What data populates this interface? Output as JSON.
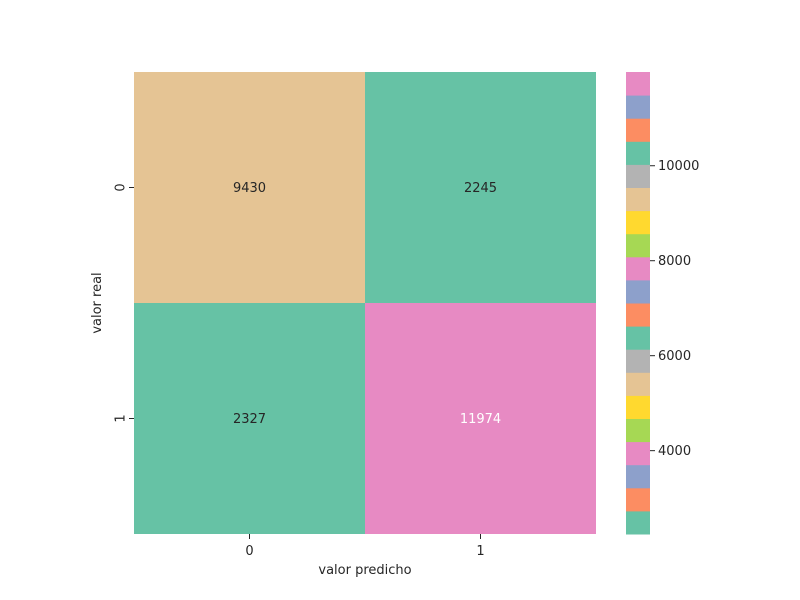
{
  "chart_data": {
    "type": "heatmap",
    "xlabel": "valor predicho",
    "ylabel": "valor real",
    "x_categories": [
      "0",
      "1"
    ],
    "y_categories": [
      "0",
      "1"
    ],
    "values": [
      [
        9430,
        2245
      ],
      [
        2327,
        11974
      ]
    ],
    "cell_colors": [
      [
        "#e5c494",
        "#66c2a5"
      ],
      [
        "#66c2a5",
        "#e78ac3"
      ]
    ],
    "annotation_colors": [
      [
        "#262626",
        "#262626"
      ],
      [
        "#262626",
        "#ffffff"
      ]
    ],
    "colorbar": {
      "range": [
        2245,
        11974
      ],
      "ticks": [
        4000,
        6000,
        8000,
        10000
      ],
      "tick_labels": [
        "4000",
        "6000",
        "8000",
        "10000"
      ],
      "palette": [
        "#66c2a5",
        "#fc8d62",
        "#8da0cb",
        "#e78ac3",
        "#a6d854",
        "#ffd92f",
        "#e5c494",
        "#b3b3b3"
      ],
      "segments": 20
    }
  }
}
